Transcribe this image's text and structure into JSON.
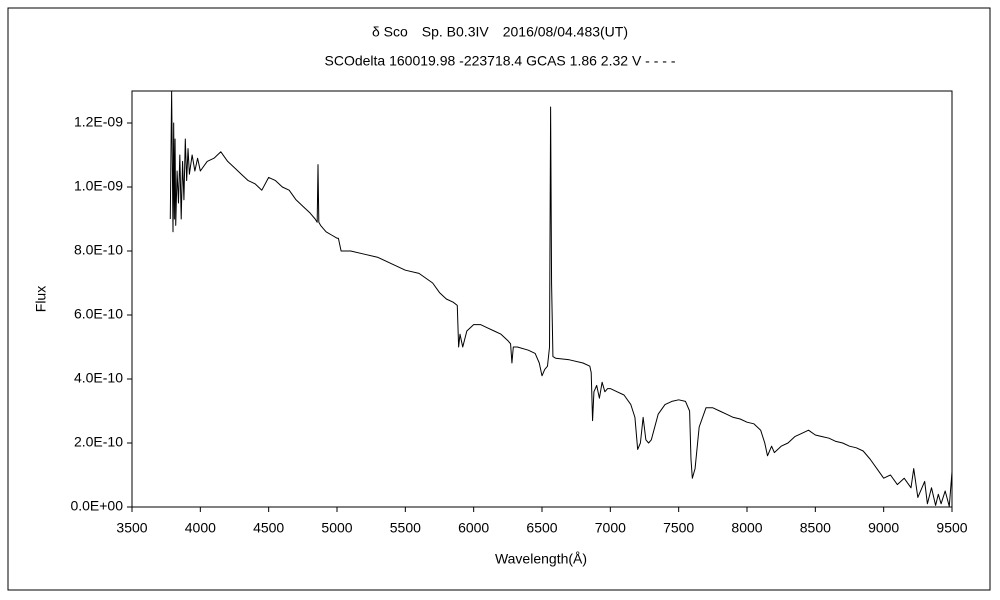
{
  "chart_data": {
    "type": "line",
    "title": "δ Sco　Sp. B0.3IV　2016/08/04.483(UT)",
    "subtitle": "SCOdelta 160019.98 -223718.4 GCAS 1.86 2.32 V - - - -",
    "xlabel": "Wavelength(Å)",
    "ylabel": "Flux",
    "color": "#000000",
    "xlim": [
      3500,
      9500
    ],
    "xticks": [
      3500,
      4000,
      4500,
      5000,
      5500,
      6000,
      6500,
      7000,
      7500,
      8000,
      8500,
      9000,
      9500
    ],
    "ylim": [
      0,
      1.3e-09
    ],
    "yticks": [
      {
        "value": 0,
        "label": "0.0E+00"
      },
      {
        "value": 2e-10,
        "label": "2.0E-10"
      },
      {
        "value": 4e-10,
        "label": "4.0E-10"
      },
      {
        "value": 6e-10,
        "label": "6.0E-10"
      },
      {
        "value": 8e-10,
        "label": "8.0E-10"
      },
      {
        "value": 1e-09,
        "label": "1.0E-09"
      },
      {
        "value": 1.2e-09,
        "label": "1.2E-09"
      }
    ],
    "grid": false,
    "x": [
      3780,
      3790,
      3800,
      3805,
      3810,
      3815,
      3820,
      3830,
      3840,
      3850,
      3860,
      3870,
      3880,
      3890,
      3900,
      3910,
      3920,
      3940,
      3960,
      3980,
      4000,
      4050,
      4100,
      4150,
      4200,
      4250,
      4300,
      4350,
      4400,
      4450,
      4500,
      4550,
      4600,
      4650,
      4700,
      4750,
      4800,
      4840,
      4855,
      4861,
      4867,
      4880,
      4920,
      4960,
      5000,
      5010,
      5030,
      5100,
      5200,
      5300,
      5400,
      5500,
      5600,
      5700,
      5750,
      5800,
      5850,
      5880,
      5890,
      5900,
      5920,
      5950,
      6000,
      6050,
      6100,
      6150,
      6200,
      6250,
      6270,
      6280,
      6290,
      6320,
      6400,
      6450,
      6480,
      6500,
      6520,
      6540,
      6555,
      6563,
      6570,
      6580,
      6600,
      6700,
      6800,
      6850,
      6860,
      6870,
      6880,
      6900,
      6920,
      6940,
      6960,
      6980,
      7000,
      7050,
      7100,
      7150,
      7180,
      7200,
      7220,
      7240,
      7260,
      7280,
      7300,
      7350,
      7400,
      7450,
      7500,
      7550,
      7580,
      7590,
      7600,
      7620,
      7650,
      7700,
      7750,
      7800,
      7850,
      7900,
      7950,
      8000,
      8050,
      8100,
      8130,
      8150,
      8180,
      8200,
      8250,
      8300,
      8350,
      8400,
      8450,
      8500,
      8550,
      8600,
      8650,
      8700,
      8750,
      8800,
      8850,
      8900,
      8950,
      9000,
      9050,
      9100,
      9150,
      9200,
      9220,
      9250,
      9300,
      9320,
      9350,
      9380,
      9400,
      9420,
      9450,
      9480,
      9500
    ],
    "values": [
      9e-10,
      1.3e-09,
      8.6e-10,
      1.2e-09,
      9e-10,
      1.15e-09,
      8.8e-10,
      1.05e-09,
      9.5e-10,
      1.1e-09,
      9e-10,
      1.08e-09,
      9.6e-10,
      1.15e-09,
      1.02e-09,
      1.12e-09,
      1.04e-09,
      1.1e-09,
      1.05e-09,
      1.09e-09,
      1.05e-09,
      1.08e-09,
      1.09e-09,
      1.11e-09,
      1.08e-09,
      1.06e-09,
      1.04e-09,
      1.02e-09,
      1.01e-09,
      9.9e-10,
      1.03e-09,
      1.02e-09,
      1e-09,
      9.9e-10,
      9.6e-10,
      9.4e-10,
      9.2e-10,
      9e-10,
      8.9e-10,
      1.07e-09,
      8.9e-10,
      8.8e-10,
      8.6e-10,
      8.5e-10,
      8.4e-10,
      8.4e-10,
      8e-10,
      8e-10,
      7.9e-10,
      7.8e-10,
      7.6e-10,
      7.4e-10,
      7.3e-10,
      7e-10,
      6.7e-10,
      6.5e-10,
      6.4e-10,
      6.3e-10,
      5e-10,
      5.4e-10,
      5e-10,
      5.5e-10,
      5.7e-10,
      5.7e-10,
      5.6e-10,
      5.5e-10,
      5.4e-10,
      5.2e-10,
      5.1e-10,
      4.5e-10,
      5e-10,
      5e-10,
      4.9e-10,
      4.8e-10,
      4.5e-10,
      4.1e-10,
      4.3e-10,
      4.4e-10,
      5e-10,
      1.25e-09,
      7e-10,
      4.7e-10,
      4.65e-10,
      4.6e-10,
      4.5e-10,
      4.4e-10,
      4.2e-10,
      2.7e-10,
      3.6e-10,
      3.8e-10,
      3.4e-10,
      3.9e-10,
      3.6e-10,
      3.7e-10,
      3.7e-10,
      3.6e-10,
      3.5e-10,
      3.2e-10,
      2.8e-10,
      1.8e-10,
      2e-10,
      2.8e-10,
      2.1e-10,
      2e-10,
      2.1e-10,
      2.9e-10,
      3.2e-10,
      3.3e-10,
      3.35e-10,
      3.3e-10,
      3e-10,
      1.5e-10,
      9e-11,
      1.2e-10,
      2.5e-10,
      3.1e-10,
      3.1e-10,
      3e-10,
      2.9e-10,
      2.8e-10,
      2.75e-10,
      2.65e-10,
      2.6e-10,
      2.4e-10,
      2e-10,
      1.6e-10,
      1.9e-10,
      1.7e-10,
      1.9e-10,
      2e-10,
      2.2e-10,
      2.3e-10,
      2.4e-10,
      2.25e-10,
      2.2e-10,
      2.15e-10,
      2.05e-10,
      2e-10,
      1.9e-10,
      1.85e-10,
      1.75e-10,
      1.5e-10,
      1.2e-10,
      9e-11,
      1e-10,
      7e-11,
      9e-11,
      6e-11,
      1.2e-10,
      3e-11,
      8e-11,
      1e-11,
      6e-11,
      5e-12,
      4e-11,
      1e-11,
      5e-11,
      2e-12,
      1.1e-10
    ]
  }
}
